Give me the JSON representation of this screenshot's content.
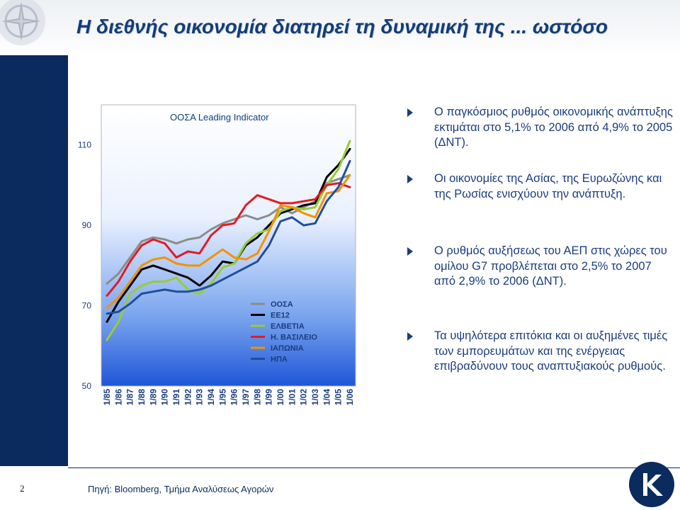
{
  "header": {
    "title": "Η διεθνής οικονομία διατηρεί τη δυναμική της ... ωστόσο"
  },
  "bullets": [
    "Ο παγκόσμιος ρυθμός οικονομικής ανάπτυξης εκτιμάται στο 5,1% το 2006 από 4,9% το 2005 (ΔΝΤ).",
    "Οι οικονομίες της Ασίας, της Ευρωζώνης και της Ρωσίας ενισχύουν την ανάπτυξη.",
    "Ο ρυθμός αυξήσεως του ΑΕΠ στις χώρες του ομίλου G7 προβλέπεται στο 2,5% το 2007 από 2,9% το 2006 (ΔΝΤ).",
    "Τα υψηλότερα επιτόκια και οι αυξημένες τιμές των εμπορευμάτων και της ενέργειας επιβραδύνουν τους αναπτυξιακούς ρυθμούς."
  ],
  "footer": {
    "page_number": "2",
    "source": "Πηγή: Bloomberg, Τμήμα Αναλύσεως Αγορών"
  },
  "colors": {
    "navy": "#0b2a5e",
    "text_blue": "#1b3c7e",
    "title_blue": "#123d7a"
  },
  "icons": {
    "top_left": "compass-star-logo",
    "bottom_right": "bank-logo",
    "bullet": "triangle-bullet-icon"
  },
  "chart_data": {
    "type": "line",
    "title": "ΟΟΣΑ Leading Indicator",
    "ylim": [
      50,
      120
    ],
    "yticks": [
      50,
      70,
      90,
      110
    ],
    "x_categories": [
      "1/85",
      "1/86",
      "1/87",
      "1/88",
      "1/89",
      "1/90",
      "1/91",
      "1/92",
      "1/93",
      "1/94",
      "1/95",
      "1/96",
      "1/97",
      "1/98",
      "1/99",
      "1/00",
      "1/01",
      "1/02",
      "1/03",
      "1/04",
      "1/05",
      "1/06"
    ],
    "series": [
      {
        "name": "ΟΟΣΑ",
        "color": "#8c8c8c",
        "values": [
          75.5,
          78,
          82,
          86,
          87,
          86.5,
          85.5,
          86.5,
          87,
          89,
          90.5,
          91.5,
          92.5,
          91.5,
          92.5,
          94.5,
          93,
          94.5,
          96,
          100.5,
          101.5,
          102.5
        ]
      },
      {
        "name": "ΕΕ12",
        "color": "#000000",
        "values": [
          66,
          71,
          75,
          79,
          80,
          79,
          78,
          77,
          75,
          77.5,
          81,
          80.5,
          85,
          87,
          90,
          93,
          94,
          95,
          95.5,
          102,
          105,
          109
        ]
      },
      {
        "name": "ΕΛΒΕΤΙΑ",
        "color": "#99cc33",
        "values": [
          61.5,
          66,
          73,
          75,
          76,
          76,
          77,
          74,
          73,
          75.5,
          79.5,
          80.5,
          85.5,
          88,
          89,
          93.5,
          94.5,
          94,
          94.5,
          100,
          104,
          111
        ]
      },
      {
        "name": "Η. ΒΑΣΙΛΕΙΟ",
        "color": "#e31b23",
        "values": [
          72.5,
          76,
          81,
          85,
          86.5,
          85.5,
          82,
          83.5,
          83,
          87.5,
          90,
          90.5,
          95,
          97.5,
          96.5,
          95.5,
          95.5,
          96,
          96.5,
          100,
          100.5,
          99.5
        ]
      },
      {
        "name": "ΙΑΠΩΝΙΑ",
        "color": "#f39200",
        "values": [
          69.5,
          72,
          76,
          80,
          81.5,
          82,
          80.5,
          80,
          80,
          82,
          84,
          82,
          81.5,
          83,
          88.5,
          95,
          94.5,
          93,
          92,
          98,
          98.5,
          102.5
        ]
      },
      {
        "name": "ΗΠΑ",
        "color": "#1f4e9e",
        "values": [
          68,
          68.5,
          70.5,
          73,
          73.5,
          74,
          73.5,
          73.5,
          74,
          75,
          76.5,
          78,
          79.5,
          81,
          85,
          91,
          92,
          90,
          90.5,
          96,
          99.5,
          106
        ]
      }
    ],
    "legend_position": "bottom-center"
  }
}
